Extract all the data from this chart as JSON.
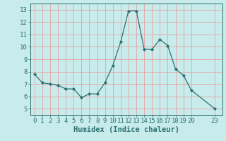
{
  "x": [
    0,
    1,
    2,
    3,
    4,
    5,
    6,
    7,
    8,
    9,
    10,
    11,
    12,
    13,
    14,
    15,
    16,
    17,
    18,
    19,
    20,
    23
  ],
  "y": [
    7.8,
    7.1,
    7.0,
    6.9,
    6.6,
    6.6,
    5.9,
    6.2,
    6.2,
    7.1,
    8.5,
    10.4,
    12.9,
    12.9,
    9.8,
    9.8,
    10.6,
    10.1,
    8.2,
    7.7,
    6.5,
    5.0
  ],
  "xlabel": "Humidex (Indice chaleur)",
  "ylim": [
    4.5,
    13.5
  ],
  "xlim": [
    -0.5,
    24
  ],
  "yticks": [
    5,
    6,
    7,
    8,
    9,
    10,
    11,
    12,
    13
  ],
  "xticks": [
    0,
    1,
    2,
    3,
    4,
    5,
    6,
    7,
    8,
    9,
    10,
    11,
    12,
    13,
    14,
    15,
    16,
    17,
    18,
    19,
    20,
    23
  ],
  "xtick_labels": [
    "0",
    "1",
    "2",
    "3",
    "4",
    "5",
    "6",
    "7",
    "8",
    "9",
    "10",
    "11",
    "12",
    "13",
    "14",
    "15",
    "16",
    "17",
    "18",
    "19",
    "20",
    "23"
  ],
  "line_color": "#2e7070",
  "marker_color": "#2e7070",
  "bg_color": "#c8ecec",
  "grid_color": "#e8a0a0",
  "axis_color": "#2e7070",
  "tick_color": "#2e7070",
  "label_color": "#2e7070",
  "xlabel_fontsize": 7.5,
  "tick_fontsize": 6.5
}
